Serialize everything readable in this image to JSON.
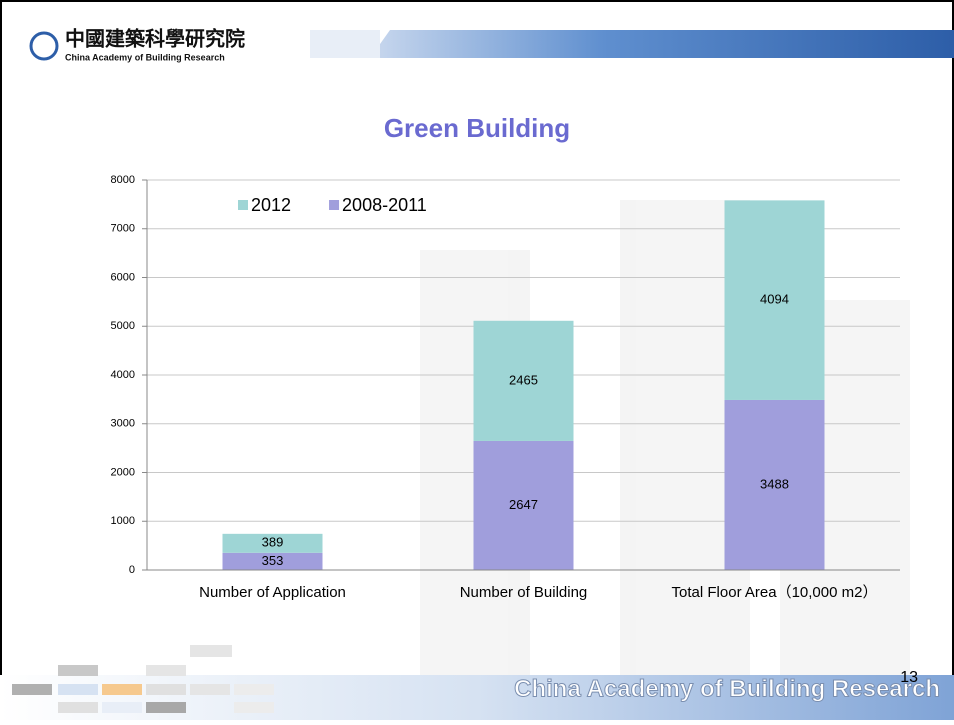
{
  "header": {
    "title_cn": "中國建築科學研究院",
    "title_en": "China Academy of Building Research"
  },
  "footer": {
    "text": "China Academy of Building Research",
    "page": "13"
  },
  "chart_data": {
    "type": "stacked_bar",
    "title": "Green Building",
    "categories": [
      "Number of Application",
      "Number of Building",
      "Total Floor Area（10,000 m2）"
    ],
    "series": [
      {
        "name": "2008-2011",
        "color": "#a09edc",
        "values": [
          353,
          2647,
          3488
        ]
      },
      {
        "name": "2012",
        "color": "#9ed5d5",
        "values": [
          389,
          2465,
          4094
        ]
      }
    ],
    "ylim": [
      0,
      8000
    ],
    "yticks": [
      0,
      1000,
      2000,
      3000,
      4000,
      5000,
      6000,
      7000,
      8000
    ],
    "grid": true,
    "legend": "top-left"
  }
}
